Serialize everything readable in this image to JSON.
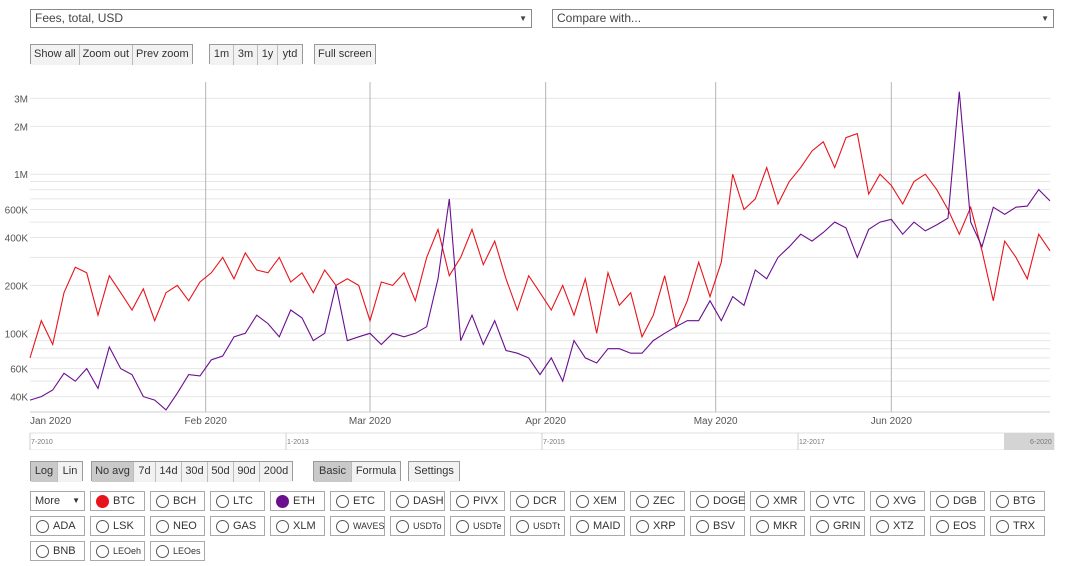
{
  "metric_select": "Fees, total, USD",
  "compare_select": "Compare with...",
  "zoom_buttons": [
    "Show all",
    "Zoom out",
    "Prev zoom"
  ],
  "range_buttons": [
    "1m",
    "3m",
    "1y",
    "ytd"
  ],
  "fullscreen_label": "Full screen",
  "scale_buttons": [
    "Log",
    "Lin"
  ],
  "avg_buttons": [
    "No avg",
    "7d",
    "14d",
    "30d",
    "50d",
    "90d",
    "200d"
  ],
  "mode_buttons": [
    "Basic",
    "Formula"
  ],
  "settings_label": "Settings",
  "more_label": "More",
  "coins": [
    [
      "BTC",
      "BCH",
      "LTC",
      "ETH",
      "ETC",
      "DASH",
      "PIVX",
      "DCR",
      "XEM",
      "ZEC",
      "DOGE",
      "XMR",
      "VTC",
      "XVG",
      "DGB",
      "BTG"
    ],
    [
      "ADA",
      "LSK",
      "NEO",
      "GAS",
      "XLM",
      "WAVES",
      "USDTo",
      "USDTe",
      "USDTt",
      "MAID",
      "XRP",
      "BSV",
      "MKR",
      "GRIN",
      "XTZ",
      "EOS",
      "TRX"
    ],
    [
      "BNB",
      "LEOeh",
      "LEOes"
    ]
  ],
  "coin_colors": {
    "BTC": "#e8141b",
    "ETH": "#6a0f8e"
  },
  "navigator_labels": [
    "7-2010",
    "1-2013",
    "7-2015",
    "12-2017",
    "6-2020"
  ],
  "chart_data": {
    "type": "line",
    "title": "",
    "yscale": "log",
    "ylim": [
      32000,
      3800000
    ],
    "y_ticks": [
      {
        "label": "3M",
        "value": 3000000
      },
      {
        "label": "2M",
        "value": 2000000
      },
      {
        "label": "1M",
        "value": 1000000
      },
      {
        "label": "600K",
        "value": 600000
      },
      {
        "label": "400K",
        "value": 400000
      },
      {
        "label": "200K",
        "value": 200000
      },
      {
        "label": "100K",
        "value": 100000
      },
      {
        "label": "60K",
        "value": 60000
      },
      {
        "label": "40K",
        "value": 40000
      }
    ],
    "x_ticks": [
      {
        "label": "Jan 2020",
        "day": 0
      },
      {
        "label": "Feb 2020",
        "day": 31
      },
      {
        "label": "Mar 2020",
        "day": 60
      },
      {
        "label": "Apr 2020",
        "day": 91
      },
      {
        "label": "May 2020",
        "day": 121
      },
      {
        "label": "Jun 2020",
        "day": 152
      }
    ],
    "xlim": [
      0,
      180
    ],
    "series": [
      {
        "name": "BTC",
        "color": "#e8141b",
        "x": [
          0,
          2,
          4,
          6,
          8,
          10,
          12,
          14,
          16,
          18,
          20,
          22,
          24,
          26,
          28,
          30,
          32,
          34,
          36,
          38,
          40,
          42,
          44,
          46,
          48,
          50,
          52,
          54,
          56,
          58,
          60,
          62,
          64,
          66,
          68,
          70,
          72,
          74,
          76,
          78,
          80,
          82,
          84,
          86,
          88,
          90,
          92,
          94,
          96,
          98,
          100,
          102,
          104,
          106,
          108,
          110,
          112,
          114,
          116,
          118,
          120,
          122,
          124,
          126,
          128,
          130,
          132,
          134,
          136,
          138,
          140,
          142,
          144,
          146,
          148,
          150,
          152,
          154,
          156,
          158,
          160,
          162,
          164,
          166,
          168,
          170,
          172,
          174,
          176,
          178,
          180
        ],
        "values": [
          70000,
          120000,
          85000,
          180000,
          260000,
          240000,
          130000,
          230000,
          180000,
          140000,
          190000,
          120000,
          180000,
          200000,
          160000,
          210000,
          240000,
          300000,
          220000,
          320000,
          250000,
          240000,
          300000,
          210000,
          240000,
          180000,
          250000,
          200000,
          220000,
          200000,
          120000,
          210000,
          200000,
          240000,
          160000,
          300000,
          450000,
          230000,
          300000,
          450000,
          270000,
          380000,
          220000,
          140000,
          230000,
          180000,
          140000,
          200000,
          130000,
          220000,
          100000,
          240000,
          150000,
          180000,
          95000,
          130000,
          230000,
          110000,
          160000,
          280000,
          170000,
          280000,
          1000000,
          600000,
          700000,
          1100000,
          650000,
          900000,
          1100000,
          1400000,
          1600000,
          1100000,
          1700000,
          1800000,
          750000,
          1000000,
          850000,
          650000,
          900000,
          1000000,
          800000,
          600000,
          420000,
          620000,
          330000,
          160000,
          380000,
          300000,
          220000,
          420000,
          330000
        ]
      },
      {
        "name": "ETH",
        "color": "#6a0f8e",
        "x": [
          0,
          2,
          4,
          6,
          8,
          10,
          12,
          14,
          16,
          18,
          20,
          22,
          24,
          26,
          28,
          30,
          32,
          34,
          36,
          38,
          40,
          42,
          44,
          46,
          48,
          50,
          52,
          54,
          56,
          58,
          60,
          62,
          64,
          66,
          68,
          70,
          72,
          74,
          76,
          78,
          80,
          82,
          84,
          86,
          88,
          90,
          92,
          94,
          96,
          98,
          100,
          102,
          104,
          106,
          108,
          110,
          112,
          114,
          116,
          118,
          120,
          122,
          124,
          126,
          128,
          130,
          132,
          134,
          136,
          138,
          140,
          142,
          144,
          146,
          148,
          150,
          152,
          154,
          156,
          158,
          160,
          162,
          164,
          166,
          168,
          170,
          172,
          174,
          176,
          178,
          180
        ],
        "values": [
          38000,
          40000,
          44000,
          56000,
          50000,
          60000,
          45000,
          82000,
          60000,
          55000,
          40000,
          38000,
          33000,
          42000,
          55000,
          54000,
          68000,
          72000,
          95000,
          100000,
          130000,
          115000,
          95000,
          140000,
          125000,
          90000,
          100000,
          200000,
          90000,
          95000,
          100000,
          85000,
          100000,
          95000,
          100000,
          110000,
          220000,
          700000,
          90000,
          130000,
          85000,
          120000,
          78000,
          75000,
          70000,
          55000,
          70000,
          50000,
          90000,
          70000,
          65000,
          80000,
          80000,
          75000,
          75000,
          90000,
          100000,
          110000,
          120000,
          120000,
          160000,
          120000,
          170000,
          150000,
          250000,
          220000,
          300000,
          350000,
          420000,
          380000,
          430000,
          500000,
          460000,
          300000,
          450000,
          500000,
          520000,
          420000,
          500000,
          440000,
          480000,
          530000,
          3300000,
          500000,
          350000,
          620000,
          560000,
          620000,
          630000,
          800000,
          680000
        ]
      }
    ]
  }
}
